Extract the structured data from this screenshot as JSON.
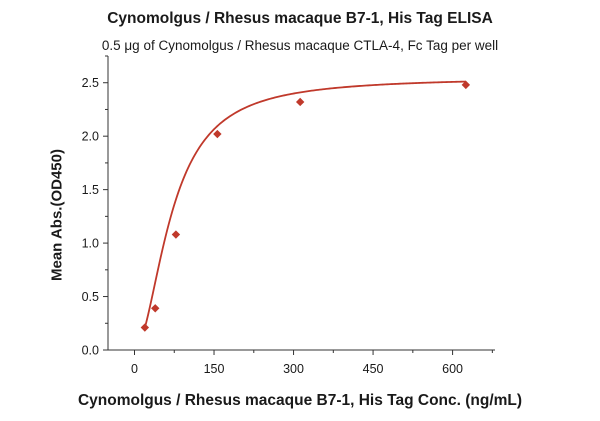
{
  "chart_data": {
    "type": "scatter",
    "title": "Cynomolgus / Rhesus macaque B7-1, His Tag ELISA",
    "subtitle": "0.5 μg of Cynomolgus / Rhesus macaque CTLA-4, Fc Tag per well",
    "xlabel": "Cynomolgus / Rhesus macaque B7-1, His Tag Conc. (ng/mL)",
    "ylabel": "Mean Abs.(OD450)",
    "xlim": [
      -50,
      680
    ],
    "ylim": [
      0,
      2.75
    ],
    "xticks": [
      0,
      150,
      300,
      450,
      600
    ],
    "yticks": [
      0.0,
      0.5,
      1.0,
      1.5,
      2.0,
      2.5
    ],
    "xtick_labels": [
      "0",
      "150",
      "300",
      "450",
      "600"
    ],
    "ytick_labels": [
      "0.0",
      "0.5",
      "1.0",
      "1.5",
      "2.0",
      "2.5"
    ],
    "grid": false,
    "color": "#c0392b",
    "series": [
      {
        "marker": "diamond",
        "x": [
          19.5,
          39.1,
          78.1,
          156.3,
          312.5,
          625
        ],
        "y": [
          0.21,
          0.39,
          1.08,
          2.02,
          2.32,
          2.48
        ]
      }
    ],
    "fit_curve": {
      "type": "4PL",
      "bottom": 0.0,
      "top": 2.55,
      "ec50": 70,
      "hill": 1.9
    }
  }
}
